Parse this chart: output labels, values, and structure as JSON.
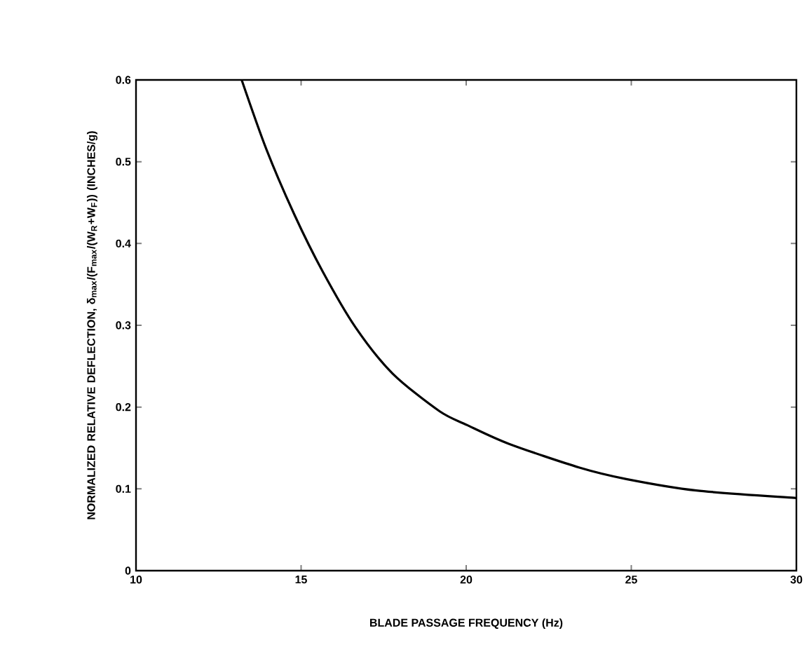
{
  "chart_data": {
    "type": "line",
    "xlabel": "BLADE PASSAGE FREQUENCY (Hz)",
    "ylabel": "NORMALIZED RELATIVE DEFLECTION, δ$_{max}$/(F$_{max}$/(W$_{R}$+W$_{F}$)) (INCHES/g)",
    "xlim": [
      10,
      30
    ],
    "ylim": [
      0,
      0.6
    ],
    "xticks": [
      10,
      15,
      20,
      25,
      30
    ],
    "yticks": [
      0,
      0.1,
      0.2,
      0.3,
      0.4,
      0.5,
      0.6
    ],
    "series": [
      {
        "color": "#000000",
        "x": [
          13.2,
          13.95,
          14.8,
          15.65,
          16.64,
          17.77,
          19.19,
          20.03,
          21.3,
          23.43,
          24.85,
          26.97,
          29.94,
          30
        ],
        "values": [
          0.6,
          0.515,
          0.435,
          0.366,
          0.298,
          0.241,
          0.195,
          0.178,
          0.155,
          0.126,
          0.112,
          0.098,
          0.089,
          0.089
        ]
      }
    ],
    "marker": "none",
    "line_style": "solid"
  }
}
